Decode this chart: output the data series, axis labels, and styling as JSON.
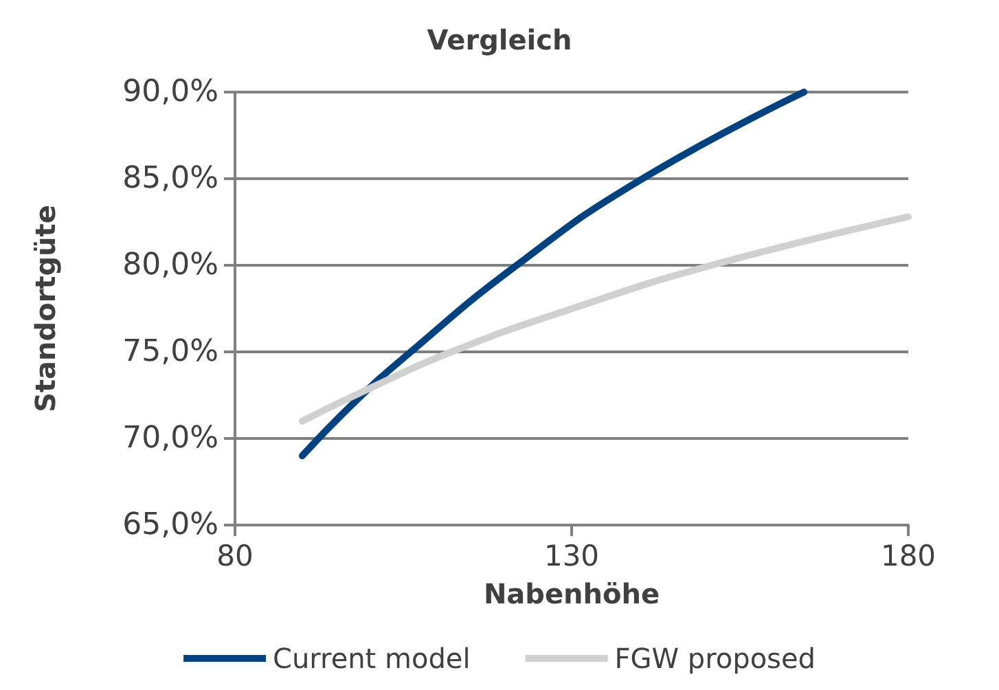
{
  "chart_data": {
    "type": "line",
    "title": "Vergleich",
    "xlabel": "Nabenhöhe",
    "ylabel": "Standortgüte",
    "xlim": [
      80,
      180
    ],
    "xticks": [
      80,
      130,
      180
    ],
    "ylim": [
      65,
      90
    ],
    "yticks": [
      {
        "value": 65,
        "label": "65,0%"
      },
      {
        "value": 70,
        "label": "70,0%"
      },
      {
        "value": 75,
        "label": "75,0%"
      },
      {
        "value": 80,
        "label": "80,0%"
      },
      {
        "value": 85,
        "label": "85,0%"
      },
      {
        "value": 90,
        "label": "90,0%"
      }
    ],
    "grid": "y",
    "legend": "bottom",
    "marker": "none",
    "line_style": "solid",
    "series": [
      {
        "name": "Current model",
        "color": "#004280",
        "x": [
          90,
          97.5,
          105.5,
          121.5,
          140.1,
          164.5
        ],
        "values": [
          69.0,
          72.0,
          74.8,
          79.9,
          84.9,
          90.0
        ]
      },
      {
        "name": "FGW proposed",
        "color": "#d0d0d0",
        "x": [
          90,
          99.5,
          112.8,
          130.1,
          150.8,
          180
        ],
        "values": [
          71.0,
          72.8,
          75.1,
          77.5,
          80.0,
          82.8
        ]
      }
    ]
  }
}
